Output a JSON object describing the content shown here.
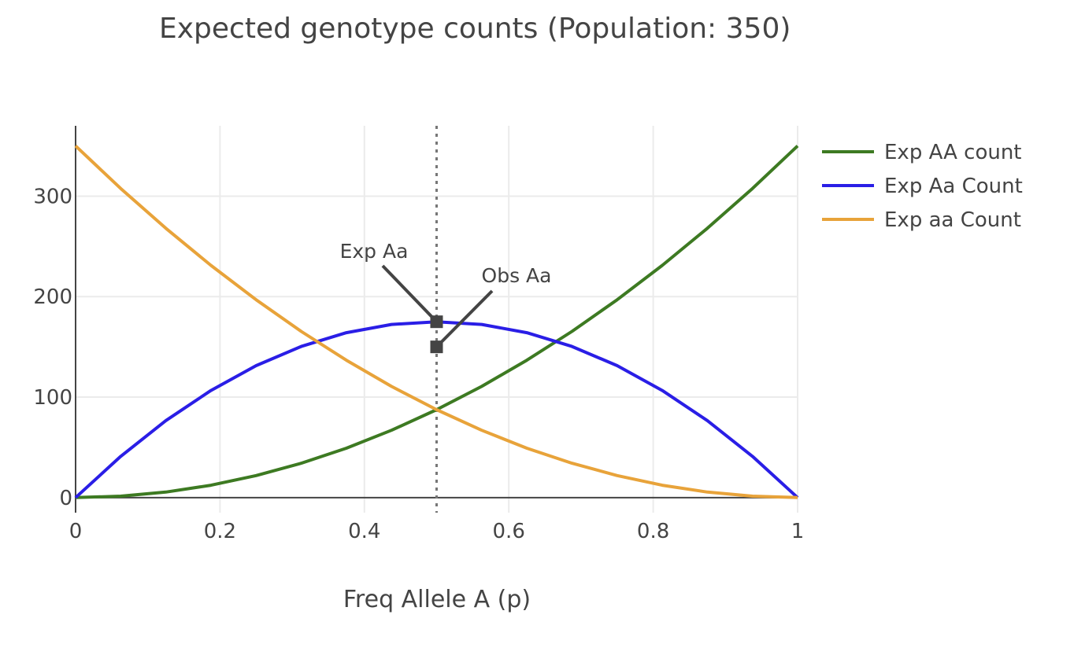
{
  "chart_data": {
    "type": "line",
    "title": "Expected genotype counts (Population: 350)",
    "xlabel": "Freq Allele A (p)",
    "ylabel": "",
    "xlim": [
      0,
      1
    ],
    "ylim": [
      -15,
      370
    ],
    "x_ticks": [
      0,
      0.2,
      0.4,
      0.6,
      0.8,
      1
    ],
    "x_tick_labels": [
      "0",
      "0.2",
      "0.4",
      "0.6",
      "0.8",
      "1"
    ],
    "y_ticks": [
      0,
      100,
      200,
      300
    ],
    "y_tick_labels": [
      "0",
      "100",
      "200",
      "300"
    ],
    "grid": true,
    "legend_position": "right",
    "x": [
      0,
      0.0625,
      0.125,
      0.1875,
      0.25,
      0.3125,
      0.375,
      0.4375,
      0.5,
      0.5625,
      0.625,
      0.6875,
      0.75,
      0.8125,
      0.875,
      0.9375,
      1
    ],
    "series": [
      {
        "name": "Exp AA count",
        "color": "#3d7a22",
        "values": [
          0,
          1.4,
          5.5,
          12.3,
          21.9,
          34.2,
          49.2,
          67.0,
          87.5,
          110.7,
          136.7,
          165.4,
          196.9,
          231.1,
          268.0,
          307.6,
          350
        ]
      },
      {
        "name": "Exp Aa Count",
        "color": "#2a1ee6",
        "values": [
          0,
          41.0,
          76.6,
          106.6,
          131.3,
          150.4,
          164.1,
          172.3,
          175.0,
          172.3,
          164.1,
          150.4,
          131.3,
          106.6,
          76.6,
          41.0,
          0
        ]
      },
      {
        "name": "Exp aa Count",
        "color": "#e8a33a",
        "values": [
          350,
          307.6,
          268.0,
          231.1,
          196.9,
          165.4,
          136.7,
          110.7,
          87.5,
          67.0,
          49.2,
          34.2,
          21.9,
          12.3,
          5.5,
          1.4,
          0
        ]
      }
    ],
    "reference_line": {
      "x": 0.5,
      "style": "dotted",
      "color": "#777777"
    },
    "markers": [
      {
        "label": "Exp Aa",
        "x": 0.5,
        "y": 175,
        "color": "#444444"
      },
      {
        "label": "Obs Aa",
        "x": 0.5,
        "y": 150,
        "color": "#444444"
      }
    ]
  }
}
